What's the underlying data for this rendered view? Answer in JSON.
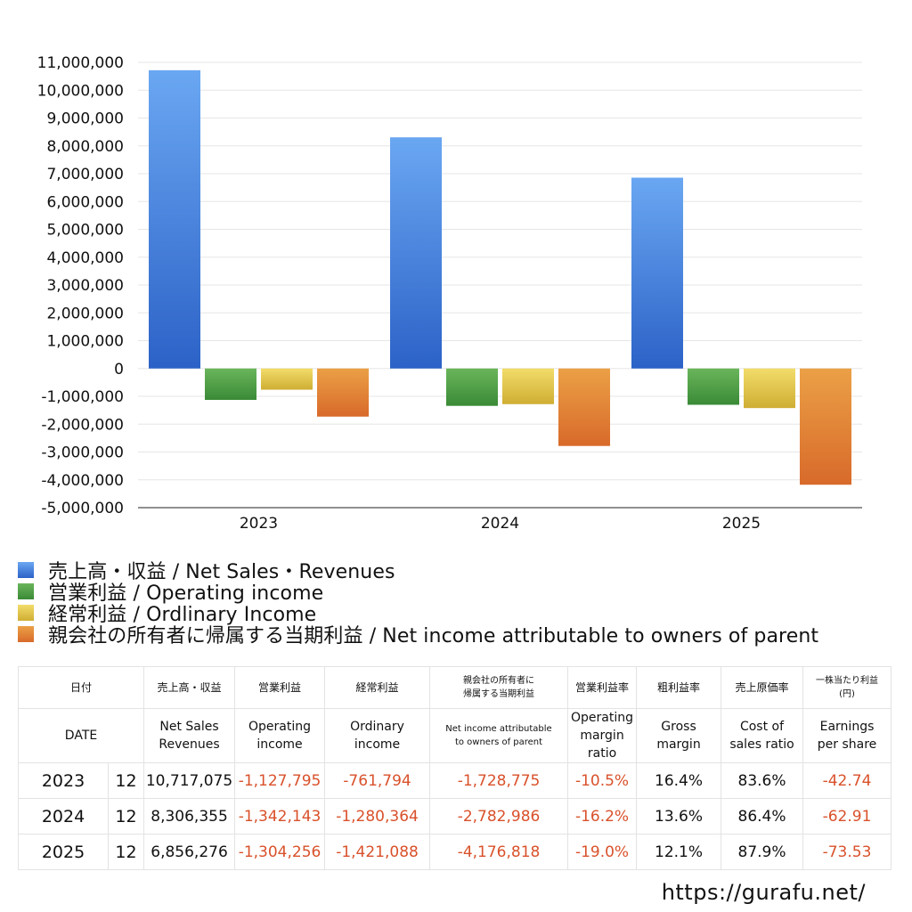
{
  "chart_data": {
    "type": "bar",
    "categories": [
      "2023",
      "2024",
      "2025"
    ],
    "series": [
      {
        "name": "売上高・収益 / Net Sales・Revenues",
        "color_top": "#6aa7f2",
        "color_bottom": "#2c62c7",
        "values": [
          10717075,
          8306355,
          6856276
        ]
      },
      {
        "name": "営業利益 / Operating income",
        "color_top": "#6ab55b",
        "color_bottom": "#3a8a36",
        "values": [
          -1127795,
          -1342143,
          -1304256
        ]
      },
      {
        "name": "経常利益 / Ordlinary Income",
        "color_top": "#f2dc6a",
        "color_bottom": "#cfae33",
        "values": [
          -761794,
          -1280364,
          -1421088
        ]
      },
      {
        "name": "親会社の所有者に帰属する当期利益 / Net income attributable to owners of parent",
        "color_top": "#eba046",
        "color_bottom": "#d86a2a",
        "values": [
          -1728775,
          -2782986,
          -4176818
        ]
      }
    ],
    "ylim": [
      -5000000,
      11000000
    ],
    "yticks": [
      11000000,
      10000000,
      9000000,
      8000000,
      7000000,
      6000000,
      5000000,
      4000000,
      3000000,
      2000000,
      1000000,
      0,
      -1000000,
      -2000000,
      -3000000,
      -4000000,
      -5000000
    ],
    "ytick_labels": [
      "11,000,000",
      "10,000,000",
      "9,000,000",
      "8,000,000",
      "7,000,000",
      "6,000,000",
      "5,000,000",
      "4,000,000",
      "3,000,000",
      "2,000,000",
      "1,000,000",
      "0",
      "-1,000,000",
      "-2,000,000",
      "-3,000,000",
      "-4,000,000",
      "-5,000,000"
    ],
    "grid": true,
    "legend_position": "bottom",
    "title": "",
    "xlabel": "",
    "ylabel": ""
  },
  "table": {
    "headers_jp": [
      "日付",
      "売上高・収益",
      "営業利益",
      "経常利益",
      "親会社の所有者に\n帰属する当期利益",
      "営業利益率",
      "粗利益率",
      "売上原価率",
      "一株当たり利益\n(円)"
    ],
    "headers_en": [
      "DATE",
      "Net Sales\nRevenues",
      "Operating\nincome",
      "Ordinary\nincome",
      "Net income attributable\nto owners of parent",
      "Operating\nmargin\nratio",
      "Gross\nmargin",
      "Cost of\nsales ratio",
      "Earnings\nper share"
    ],
    "rows": [
      {
        "year": "2023",
        "month": "12",
        "revenue": "10,717,075",
        "operating": "-1,127,795",
        "ordinary": "-761,794",
        "net": "-1,728,775",
        "op_margin": "-10.5%",
        "gross": "16.4%",
        "cost": "83.6%",
        "eps": "-42.74"
      },
      {
        "year": "2024",
        "month": "12",
        "revenue": "8,306,355",
        "operating": "-1,342,143",
        "ordinary": "-1,280,364",
        "net": "-2,782,986",
        "op_margin": "-16.2%",
        "gross": "13.6%",
        "cost": "86.4%",
        "eps": "-62.91"
      },
      {
        "year": "2025",
        "month": "12",
        "revenue": "6,856,276",
        "operating": "-1,304,256",
        "ordinary": "-1,421,088",
        "net": "-4,176,818",
        "op_margin": "-19.0%",
        "gross": "12.1%",
        "cost": "87.9%",
        "eps": "-73.53"
      }
    ]
  },
  "footer": {
    "url": "https://gurafu.net/"
  }
}
